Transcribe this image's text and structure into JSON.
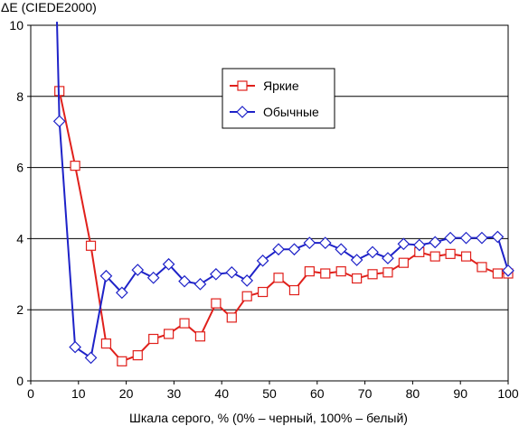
{
  "chart_data": {
    "type": "line",
    "ylabel": "ΔE (CIEDE2000)",
    "xlabel": "Шкала серого, % (0% – черный, 100% – белый)",
    "xlim": [
      0,
      100
    ],
    "ylim": [
      0,
      10
    ],
    "xticks": [
      "0",
      "10",
      "20",
      "30",
      "40",
      "50",
      "60",
      "70",
      "80",
      "90",
      "100"
    ],
    "yticks": [
      "0",
      "2",
      "4",
      "6",
      "8",
      "10"
    ],
    "grid": "horizontal",
    "legend_position": "top-center",
    "series": [
      {
        "name": "Яркие",
        "color": "#e0201b",
        "marker": "square",
        "x": [
          6.0,
          9.3,
          12.6,
          15.8,
          19.1,
          22.4,
          25.7,
          28.9,
          32.2,
          35.5,
          38.8,
          42.1,
          45.3,
          48.6,
          51.9,
          55.2,
          58.4,
          61.7,
          65.0,
          68.3,
          71.6,
          74.8,
          78.1,
          81.4,
          84.7,
          87.9,
          91.2,
          94.5,
          97.8,
          100.0
        ],
        "y": [
          8.15,
          6.05,
          3.8,
          1.05,
          0.55,
          0.72,
          1.18,
          1.32,
          1.62,
          1.25,
          2.18,
          1.78,
          2.38,
          2.5,
          2.9,
          2.55,
          3.08,
          3.02,
          3.08,
          2.88,
          3.0,
          3.05,
          3.32,
          3.62,
          3.5,
          3.57,
          3.5,
          3.2,
          3.02,
          3.02
        ]
      },
      {
        "name": "Обычные",
        "color": "#1e22c8",
        "marker": "diamond",
        "x": [
          5.5,
          6.0,
          9.3,
          12.6,
          15.8,
          19.1,
          22.4,
          25.7,
          28.9,
          32.2,
          35.5,
          38.8,
          42.1,
          45.3,
          48.6,
          51.9,
          55.2,
          58.4,
          61.7,
          65.0,
          68.3,
          71.6,
          74.8,
          78.1,
          81.4,
          84.7,
          87.9,
          91.2,
          94.5,
          97.8,
          100.0
        ],
        "y": [
          10.1,
          7.3,
          0.95,
          0.65,
          2.95,
          2.48,
          3.12,
          2.9,
          3.28,
          2.8,
          2.72,
          3.0,
          3.05,
          2.82,
          3.38,
          3.7,
          3.7,
          3.88,
          3.88,
          3.7,
          3.4,
          3.62,
          3.45,
          3.85,
          3.82,
          3.9,
          4.02,
          4.02,
          4.02,
          4.05,
          3.1
        ]
      }
    ]
  }
}
